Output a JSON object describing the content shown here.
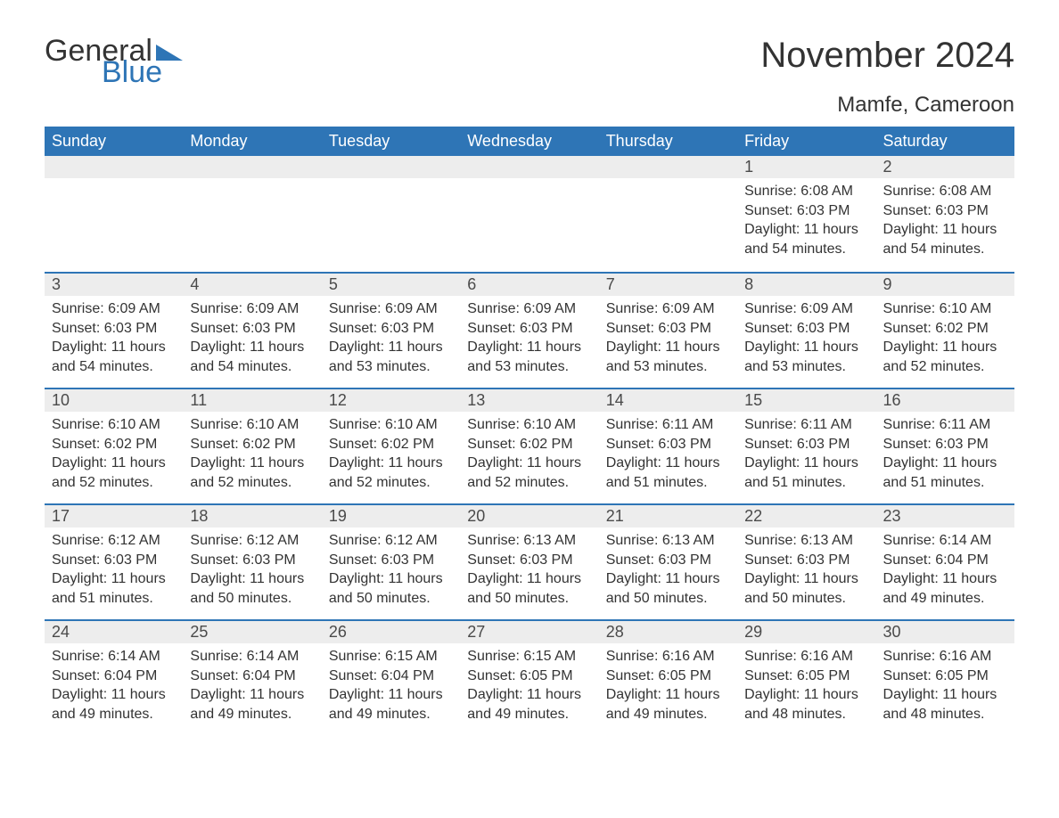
{
  "brand": {
    "word1": "General",
    "word2": "Blue",
    "text_color": "#333333",
    "accent_color": "#2e75b6"
  },
  "title": "November 2024",
  "location": "Mamfe, Cameroon",
  "colors": {
    "header_bg": "#2e75b6",
    "header_text": "#ffffff",
    "daynum_bg": "#ededed",
    "daynum_border": "#2e75b6",
    "body_text": "#333333",
    "page_bg": "#ffffff"
  },
  "daysOfWeek": [
    "Sunday",
    "Monday",
    "Tuesday",
    "Wednesday",
    "Thursday",
    "Friday",
    "Saturday"
  ],
  "weeks": [
    [
      {
        "day": "",
        "lines": [
          "",
          "",
          "",
          ""
        ]
      },
      {
        "day": "",
        "lines": [
          "",
          "",
          "",
          ""
        ]
      },
      {
        "day": "",
        "lines": [
          "",
          "",
          "",
          ""
        ]
      },
      {
        "day": "",
        "lines": [
          "",
          "",
          "",
          ""
        ]
      },
      {
        "day": "",
        "lines": [
          "",
          "",
          "",
          ""
        ]
      },
      {
        "day": "1",
        "lines": [
          "Sunrise: 6:08 AM",
          "Sunset: 6:03 PM",
          "Daylight: 11 hours",
          "and 54 minutes."
        ]
      },
      {
        "day": "2",
        "lines": [
          "Sunrise: 6:08 AM",
          "Sunset: 6:03 PM",
          "Daylight: 11 hours",
          "and 54 minutes."
        ]
      }
    ],
    [
      {
        "day": "3",
        "lines": [
          "Sunrise: 6:09 AM",
          "Sunset: 6:03 PM",
          "Daylight: 11 hours",
          "and 54 minutes."
        ]
      },
      {
        "day": "4",
        "lines": [
          "Sunrise: 6:09 AM",
          "Sunset: 6:03 PM",
          "Daylight: 11 hours",
          "and 54 minutes."
        ]
      },
      {
        "day": "5",
        "lines": [
          "Sunrise: 6:09 AM",
          "Sunset: 6:03 PM",
          "Daylight: 11 hours",
          "and 53 minutes."
        ]
      },
      {
        "day": "6",
        "lines": [
          "Sunrise: 6:09 AM",
          "Sunset: 6:03 PM",
          "Daylight: 11 hours",
          "and 53 minutes."
        ]
      },
      {
        "day": "7",
        "lines": [
          "Sunrise: 6:09 AM",
          "Sunset: 6:03 PM",
          "Daylight: 11 hours",
          "and 53 minutes."
        ]
      },
      {
        "day": "8",
        "lines": [
          "Sunrise: 6:09 AM",
          "Sunset: 6:03 PM",
          "Daylight: 11 hours",
          "and 53 minutes."
        ]
      },
      {
        "day": "9",
        "lines": [
          "Sunrise: 6:10 AM",
          "Sunset: 6:02 PM",
          "Daylight: 11 hours",
          "and 52 minutes."
        ]
      }
    ],
    [
      {
        "day": "10",
        "lines": [
          "Sunrise: 6:10 AM",
          "Sunset: 6:02 PM",
          "Daylight: 11 hours",
          "and 52 minutes."
        ]
      },
      {
        "day": "11",
        "lines": [
          "Sunrise: 6:10 AM",
          "Sunset: 6:02 PM",
          "Daylight: 11 hours",
          "and 52 minutes."
        ]
      },
      {
        "day": "12",
        "lines": [
          "Sunrise: 6:10 AM",
          "Sunset: 6:02 PM",
          "Daylight: 11 hours",
          "and 52 minutes."
        ]
      },
      {
        "day": "13",
        "lines": [
          "Sunrise: 6:10 AM",
          "Sunset: 6:02 PM",
          "Daylight: 11 hours",
          "and 52 minutes."
        ]
      },
      {
        "day": "14",
        "lines": [
          "Sunrise: 6:11 AM",
          "Sunset: 6:03 PM",
          "Daylight: 11 hours",
          "and 51 minutes."
        ]
      },
      {
        "day": "15",
        "lines": [
          "Sunrise: 6:11 AM",
          "Sunset: 6:03 PM",
          "Daylight: 11 hours",
          "and 51 minutes."
        ]
      },
      {
        "day": "16",
        "lines": [
          "Sunrise: 6:11 AM",
          "Sunset: 6:03 PM",
          "Daylight: 11 hours",
          "and 51 minutes."
        ]
      }
    ],
    [
      {
        "day": "17",
        "lines": [
          "Sunrise: 6:12 AM",
          "Sunset: 6:03 PM",
          "Daylight: 11 hours",
          "and 51 minutes."
        ]
      },
      {
        "day": "18",
        "lines": [
          "Sunrise: 6:12 AM",
          "Sunset: 6:03 PM",
          "Daylight: 11 hours",
          "and 50 minutes."
        ]
      },
      {
        "day": "19",
        "lines": [
          "Sunrise: 6:12 AM",
          "Sunset: 6:03 PM",
          "Daylight: 11 hours",
          "and 50 minutes."
        ]
      },
      {
        "day": "20",
        "lines": [
          "Sunrise: 6:13 AM",
          "Sunset: 6:03 PM",
          "Daylight: 11 hours",
          "and 50 minutes."
        ]
      },
      {
        "day": "21",
        "lines": [
          "Sunrise: 6:13 AM",
          "Sunset: 6:03 PM",
          "Daylight: 11 hours",
          "and 50 minutes."
        ]
      },
      {
        "day": "22",
        "lines": [
          "Sunrise: 6:13 AM",
          "Sunset: 6:03 PM",
          "Daylight: 11 hours",
          "and 50 minutes."
        ]
      },
      {
        "day": "23",
        "lines": [
          "Sunrise: 6:14 AM",
          "Sunset: 6:04 PM",
          "Daylight: 11 hours",
          "and 49 minutes."
        ]
      }
    ],
    [
      {
        "day": "24",
        "lines": [
          "Sunrise: 6:14 AM",
          "Sunset: 6:04 PM",
          "Daylight: 11 hours",
          "and 49 minutes."
        ]
      },
      {
        "day": "25",
        "lines": [
          "Sunrise: 6:14 AM",
          "Sunset: 6:04 PM",
          "Daylight: 11 hours",
          "and 49 minutes."
        ]
      },
      {
        "day": "26",
        "lines": [
          "Sunrise: 6:15 AM",
          "Sunset: 6:04 PM",
          "Daylight: 11 hours",
          "and 49 minutes."
        ]
      },
      {
        "day": "27",
        "lines": [
          "Sunrise: 6:15 AM",
          "Sunset: 6:05 PM",
          "Daylight: 11 hours",
          "and 49 minutes."
        ]
      },
      {
        "day": "28",
        "lines": [
          "Sunrise: 6:16 AM",
          "Sunset: 6:05 PM",
          "Daylight: 11 hours",
          "and 49 minutes."
        ]
      },
      {
        "day": "29",
        "lines": [
          "Sunrise: 6:16 AM",
          "Sunset: 6:05 PM",
          "Daylight: 11 hours",
          "and 48 minutes."
        ]
      },
      {
        "day": "30",
        "lines": [
          "Sunrise: 6:16 AM",
          "Sunset: 6:05 PM",
          "Daylight: 11 hours",
          "and 48 minutes."
        ]
      }
    ]
  ]
}
